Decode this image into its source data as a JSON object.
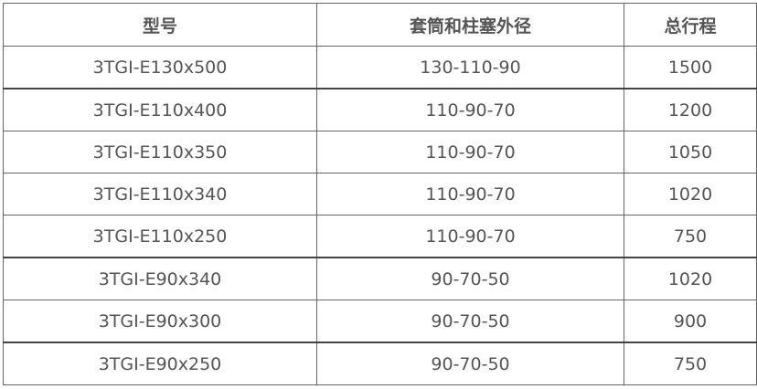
{
  "table": {
    "headers": [
      "型号",
      "套筒和柱塞外径",
      "总行程"
    ],
    "rows": [
      [
        "3TGI-E130x500",
        "130-110-90",
        "1500"
      ],
      [
        "3TGI-E110x400",
        "110-90-70",
        "1200"
      ],
      [
        "3TGI-E110x350",
        "110-90-70",
        "1050"
      ],
      [
        "3TGI-E110x340",
        "110-90-70",
        "1020"
      ],
      [
        "3TGI-E110x250",
        "110-90-70",
        "750"
      ],
      [
        "3TGI-E90x340",
        "90-70-50",
        "1020"
      ],
      [
        "3TGI-E90x300",
        "90-70-50",
        "900"
      ],
      [
        "3TGI-E90x250",
        "90-70-50",
        "750"
      ]
    ]
  }
}
